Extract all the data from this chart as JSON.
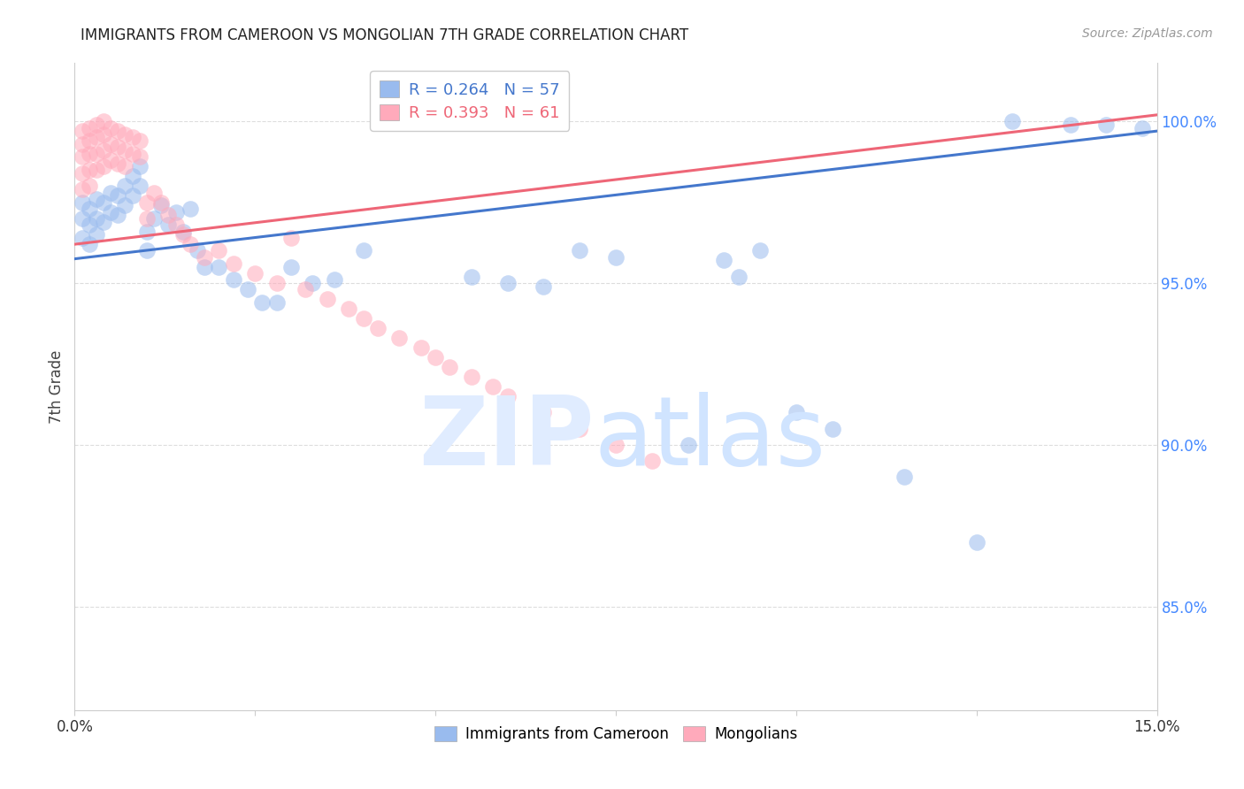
{
  "title": "IMMIGRANTS FROM CAMEROON VS MONGOLIAN 7TH GRADE CORRELATION CHART",
  "source": "Source: ZipAtlas.com",
  "ylabel": "7th Grade",
  "ylabel_right_ticks": [
    "100.0%",
    "95.0%",
    "90.0%",
    "85.0%"
  ],
  "ylabel_right_vals": [
    1.0,
    0.95,
    0.9,
    0.85
  ],
  "xmin": 0.0,
  "xmax": 0.15,
  "ymin": 0.818,
  "ymax": 1.018,
  "legend_blue_r": "0.264",
  "legend_blue_n": "57",
  "legend_pink_r": "0.393",
  "legend_pink_n": "61",
  "blue_color": "#99BBEE",
  "pink_color": "#FFAABB",
  "blue_line_color": "#4477CC",
  "pink_line_color": "#EE6677",
  "grid_color": "#DDDDDD",
  "blue_trend": [
    0.9575,
    0.997
  ],
  "pink_trend": [
    0.962,
    1.002
  ],
  "blue_points_x": [
    0.001,
    0.001,
    0.001,
    0.002,
    0.002,
    0.002,
    0.003,
    0.003,
    0.003,
    0.004,
    0.004,
    0.005,
    0.005,
    0.006,
    0.006,
    0.007,
    0.007,
    0.008,
    0.008,
    0.009,
    0.009,
    0.01,
    0.01,
    0.011,
    0.012,
    0.013,
    0.014,
    0.015,
    0.016,
    0.017,
    0.018,
    0.02,
    0.022,
    0.024,
    0.026,
    0.028,
    0.03,
    0.033,
    0.036,
    0.04,
    0.055,
    0.06,
    0.065,
    0.07,
    0.075,
    0.085,
    0.09,
    0.092,
    0.095,
    0.1,
    0.105,
    0.115,
    0.125,
    0.13,
    0.138,
    0.143,
    0.148
  ],
  "blue_points_y": [
    0.975,
    0.97,
    0.964,
    0.973,
    0.968,
    0.962,
    0.976,
    0.97,
    0.965,
    0.975,
    0.969,
    0.978,
    0.972,
    0.977,
    0.971,
    0.98,
    0.974,
    0.983,
    0.977,
    0.986,
    0.98,
    0.966,
    0.96,
    0.97,
    0.974,
    0.968,
    0.972,
    0.966,
    0.973,
    0.96,
    0.955,
    0.955,
    0.951,
    0.948,
    0.944,
    0.944,
    0.955,
    0.95,
    0.951,
    0.96,
    0.952,
    0.95,
    0.949,
    0.96,
    0.958,
    0.9,
    0.957,
    0.952,
    0.96,
    0.91,
    0.905,
    0.89,
    0.87,
    1.0,
    0.999,
    0.999,
    0.998
  ],
  "pink_points_x": [
    0.001,
    0.001,
    0.001,
    0.001,
    0.001,
    0.002,
    0.002,
    0.002,
    0.002,
    0.002,
    0.003,
    0.003,
    0.003,
    0.003,
    0.004,
    0.004,
    0.004,
    0.004,
    0.005,
    0.005,
    0.005,
    0.006,
    0.006,
    0.006,
    0.007,
    0.007,
    0.007,
    0.008,
    0.008,
    0.009,
    0.009,
    0.01,
    0.01,
    0.011,
    0.012,
    0.013,
    0.014,
    0.015,
    0.016,
    0.018,
    0.02,
    0.022,
    0.025,
    0.028,
    0.03,
    0.032,
    0.035,
    0.038,
    0.04,
    0.042,
    0.045,
    0.048,
    0.05,
    0.052,
    0.055,
    0.058,
    0.06,
    0.065,
    0.07,
    0.075,
    0.08
  ],
  "pink_points_y": [
    0.997,
    0.993,
    0.989,
    0.984,
    0.979,
    0.998,
    0.994,
    0.99,
    0.985,
    0.98,
    0.999,
    0.995,
    0.99,
    0.985,
    1.0,
    0.996,
    0.991,
    0.986,
    0.998,
    0.993,
    0.988,
    0.997,
    0.992,
    0.987,
    0.996,
    0.991,
    0.986,
    0.995,
    0.99,
    0.994,
    0.989,
    0.975,
    0.97,
    0.978,
    0.975,
    0.971,
    0.968,
    0.965,
    0.962,
    0.958,
    0.96,
    0.956,
    0.953,
    0.95,
    0.964,
    0.948,
    0.945,
    0.942,
    0.939,
    0.936,
    0.933,
    0.93,
    0.927,
    0.924,
    0.921,
    0.918,
    0.915,
    0.91,
    0.905,
    0.9,
    0.895
  ]
}
